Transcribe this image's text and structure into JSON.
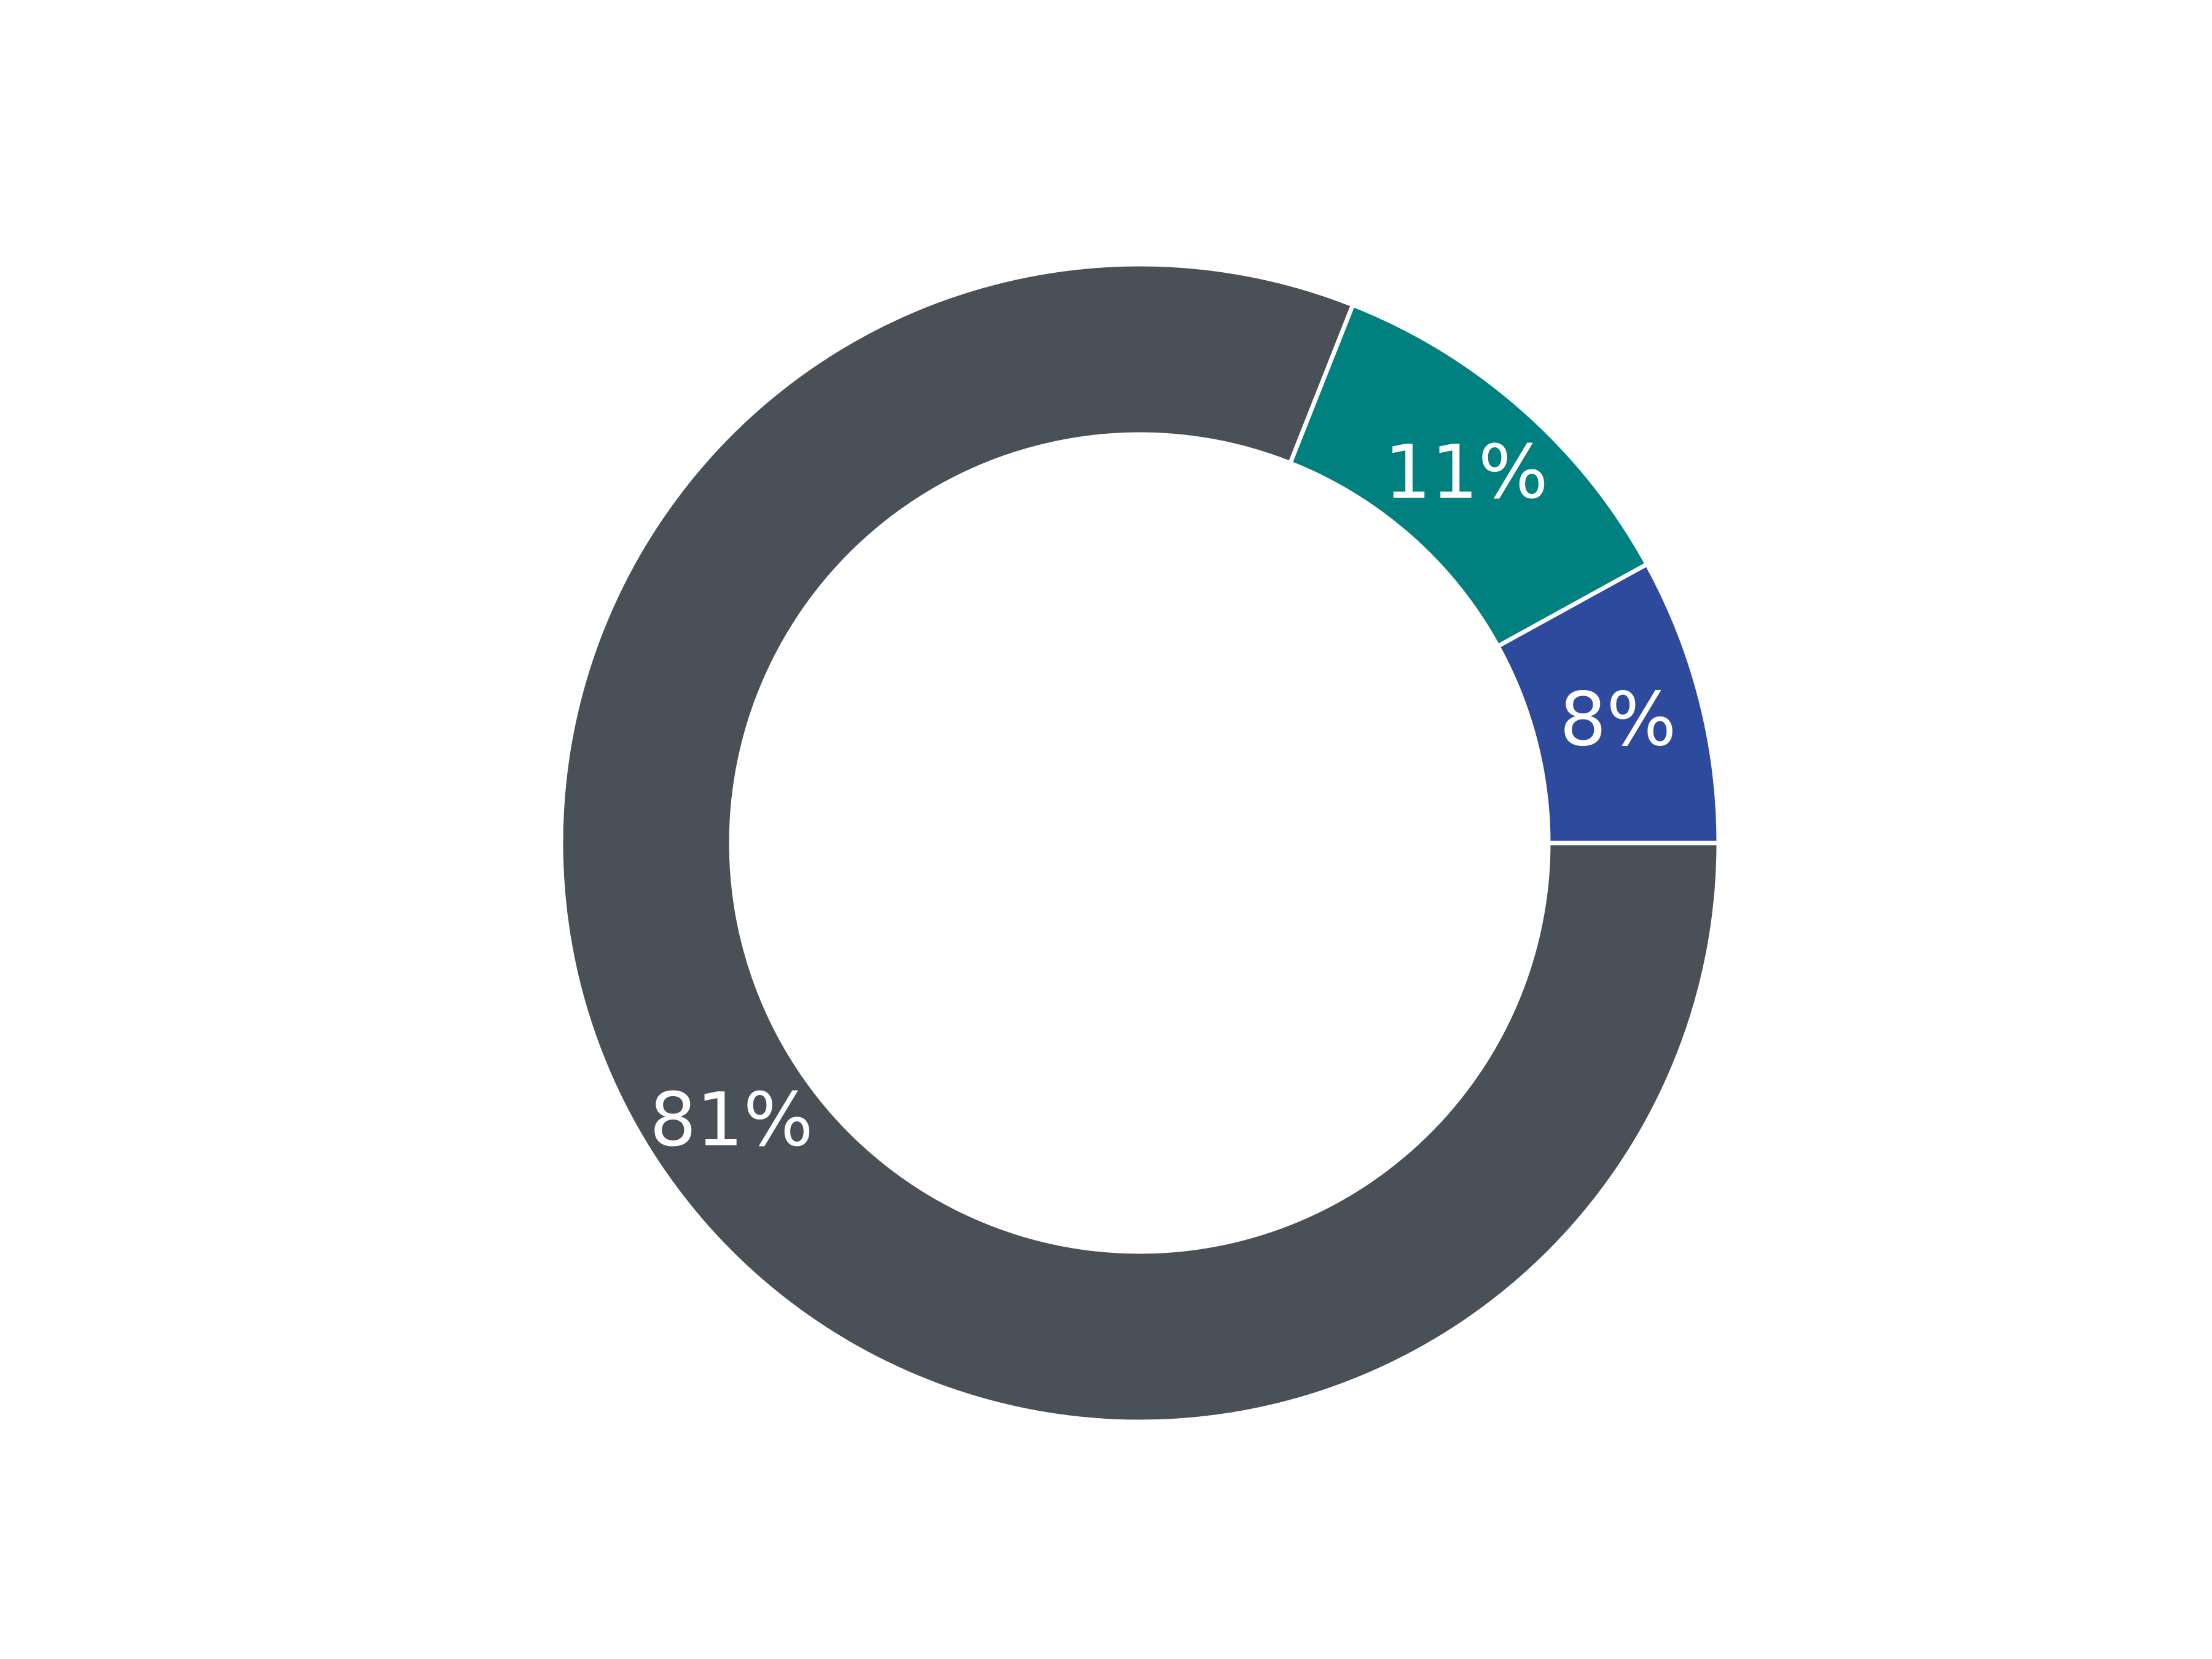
{
  "chart_data": {
    "type": "pie",
    "variant": "donut",
    "start_angle_deg": 0,
    "direction": "counterclockwise",
    "slices": [
      {
        "label": "8%",
        "value": 8,
        "color": "#2e4a9c"
      },
      {
        "label": "11%",
        "value": 11,
        "color": "#00807e"
      },
      {
        "label": "81%",
        "value": 81,
        "color": "#4a5058"
      }
    ],
    "legend": "none",
    "title": ""
  }
}
